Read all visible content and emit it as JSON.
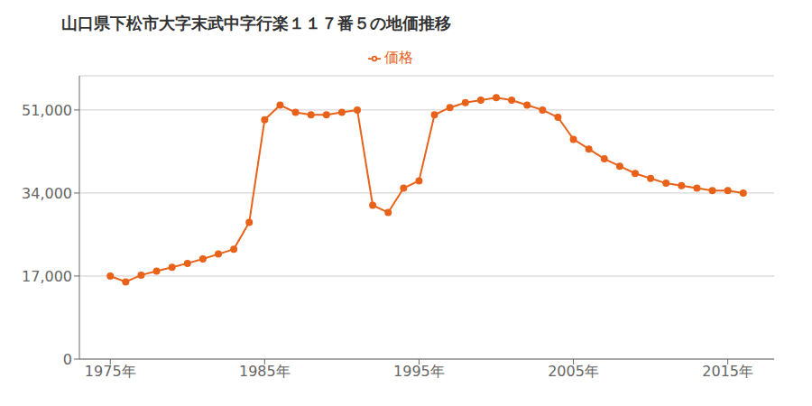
{
  "chart_data": {
    "type": "line",
    "title": "山口県下松市大字末武中字行楽１１７番５の地価推移",
    "x": [
      1975,
      1976,
      1977,
      1978,
      1979,
      1980,
      1981,
      1982,
      1983,
      1984,
      1985,
      1986,
      1987,
      1988,
      1989,
      1990,
      1991,
      1992,
      1993,
      1994,
      1995,
      1996,
      1997,
      1998,
      1999,
      2000,
      2001,
      2002,
      2003,
      2004,
      2005,
      2006,
      2007,
      2008,
      2009,
      2010,
      2011,
      2012,
      2013,
      2014,
      2015,
      2016
    ],
    "series": [
      {
        "name": "価格",
        "color": "#E8621A",
        "marker": "circle",
        "values": [
          17000,
          15800,
          17200,
          18000,
          18800,
          19600,
          20500,
          21500,
          22500,
          28000,
          49000,
          52000,
          50500,
          50000,
          50000,
          50500,
          51000,
          31500,
          30000,
          35000,
          36500,
          50000,
          51500,
          52500,
          53000,
          53500,
          53000,
          52000,
          51000,
          49500,
          45000,
          43000,
          41000,
          39500,
          38000,
          37000,
          36000,
          35500,
          35000,
          34500,
          34500,
          34000
        ]
      }
    ],
    "xlim": [
      1973,
      2018
    ],
    "xticks": [
      {
        "value": 1975,
        "label": "1975年"
      },
      {
        "value": 1985,
        "label": "1985年"
      },
      {
        "value": 1995,
        "label": "1995年"
      },
      {
        "value": 2005,
        "label": "2005年"
      },
      {
        "value": 2015,
        "label": "2015年"
      }
    ],
    "ylim": [
      0,
      58000
    ],
    "yticks": [
      0,
      {
        "value": 17000,
        "label": "17,000"
      },
      {
        "value": 34000,
        "label": "34,000"
      },
      {
        "value": 51000,
        "label": "51,000"
      }
    ],
    "grid": true,
    "legend": "top"
  }
}
